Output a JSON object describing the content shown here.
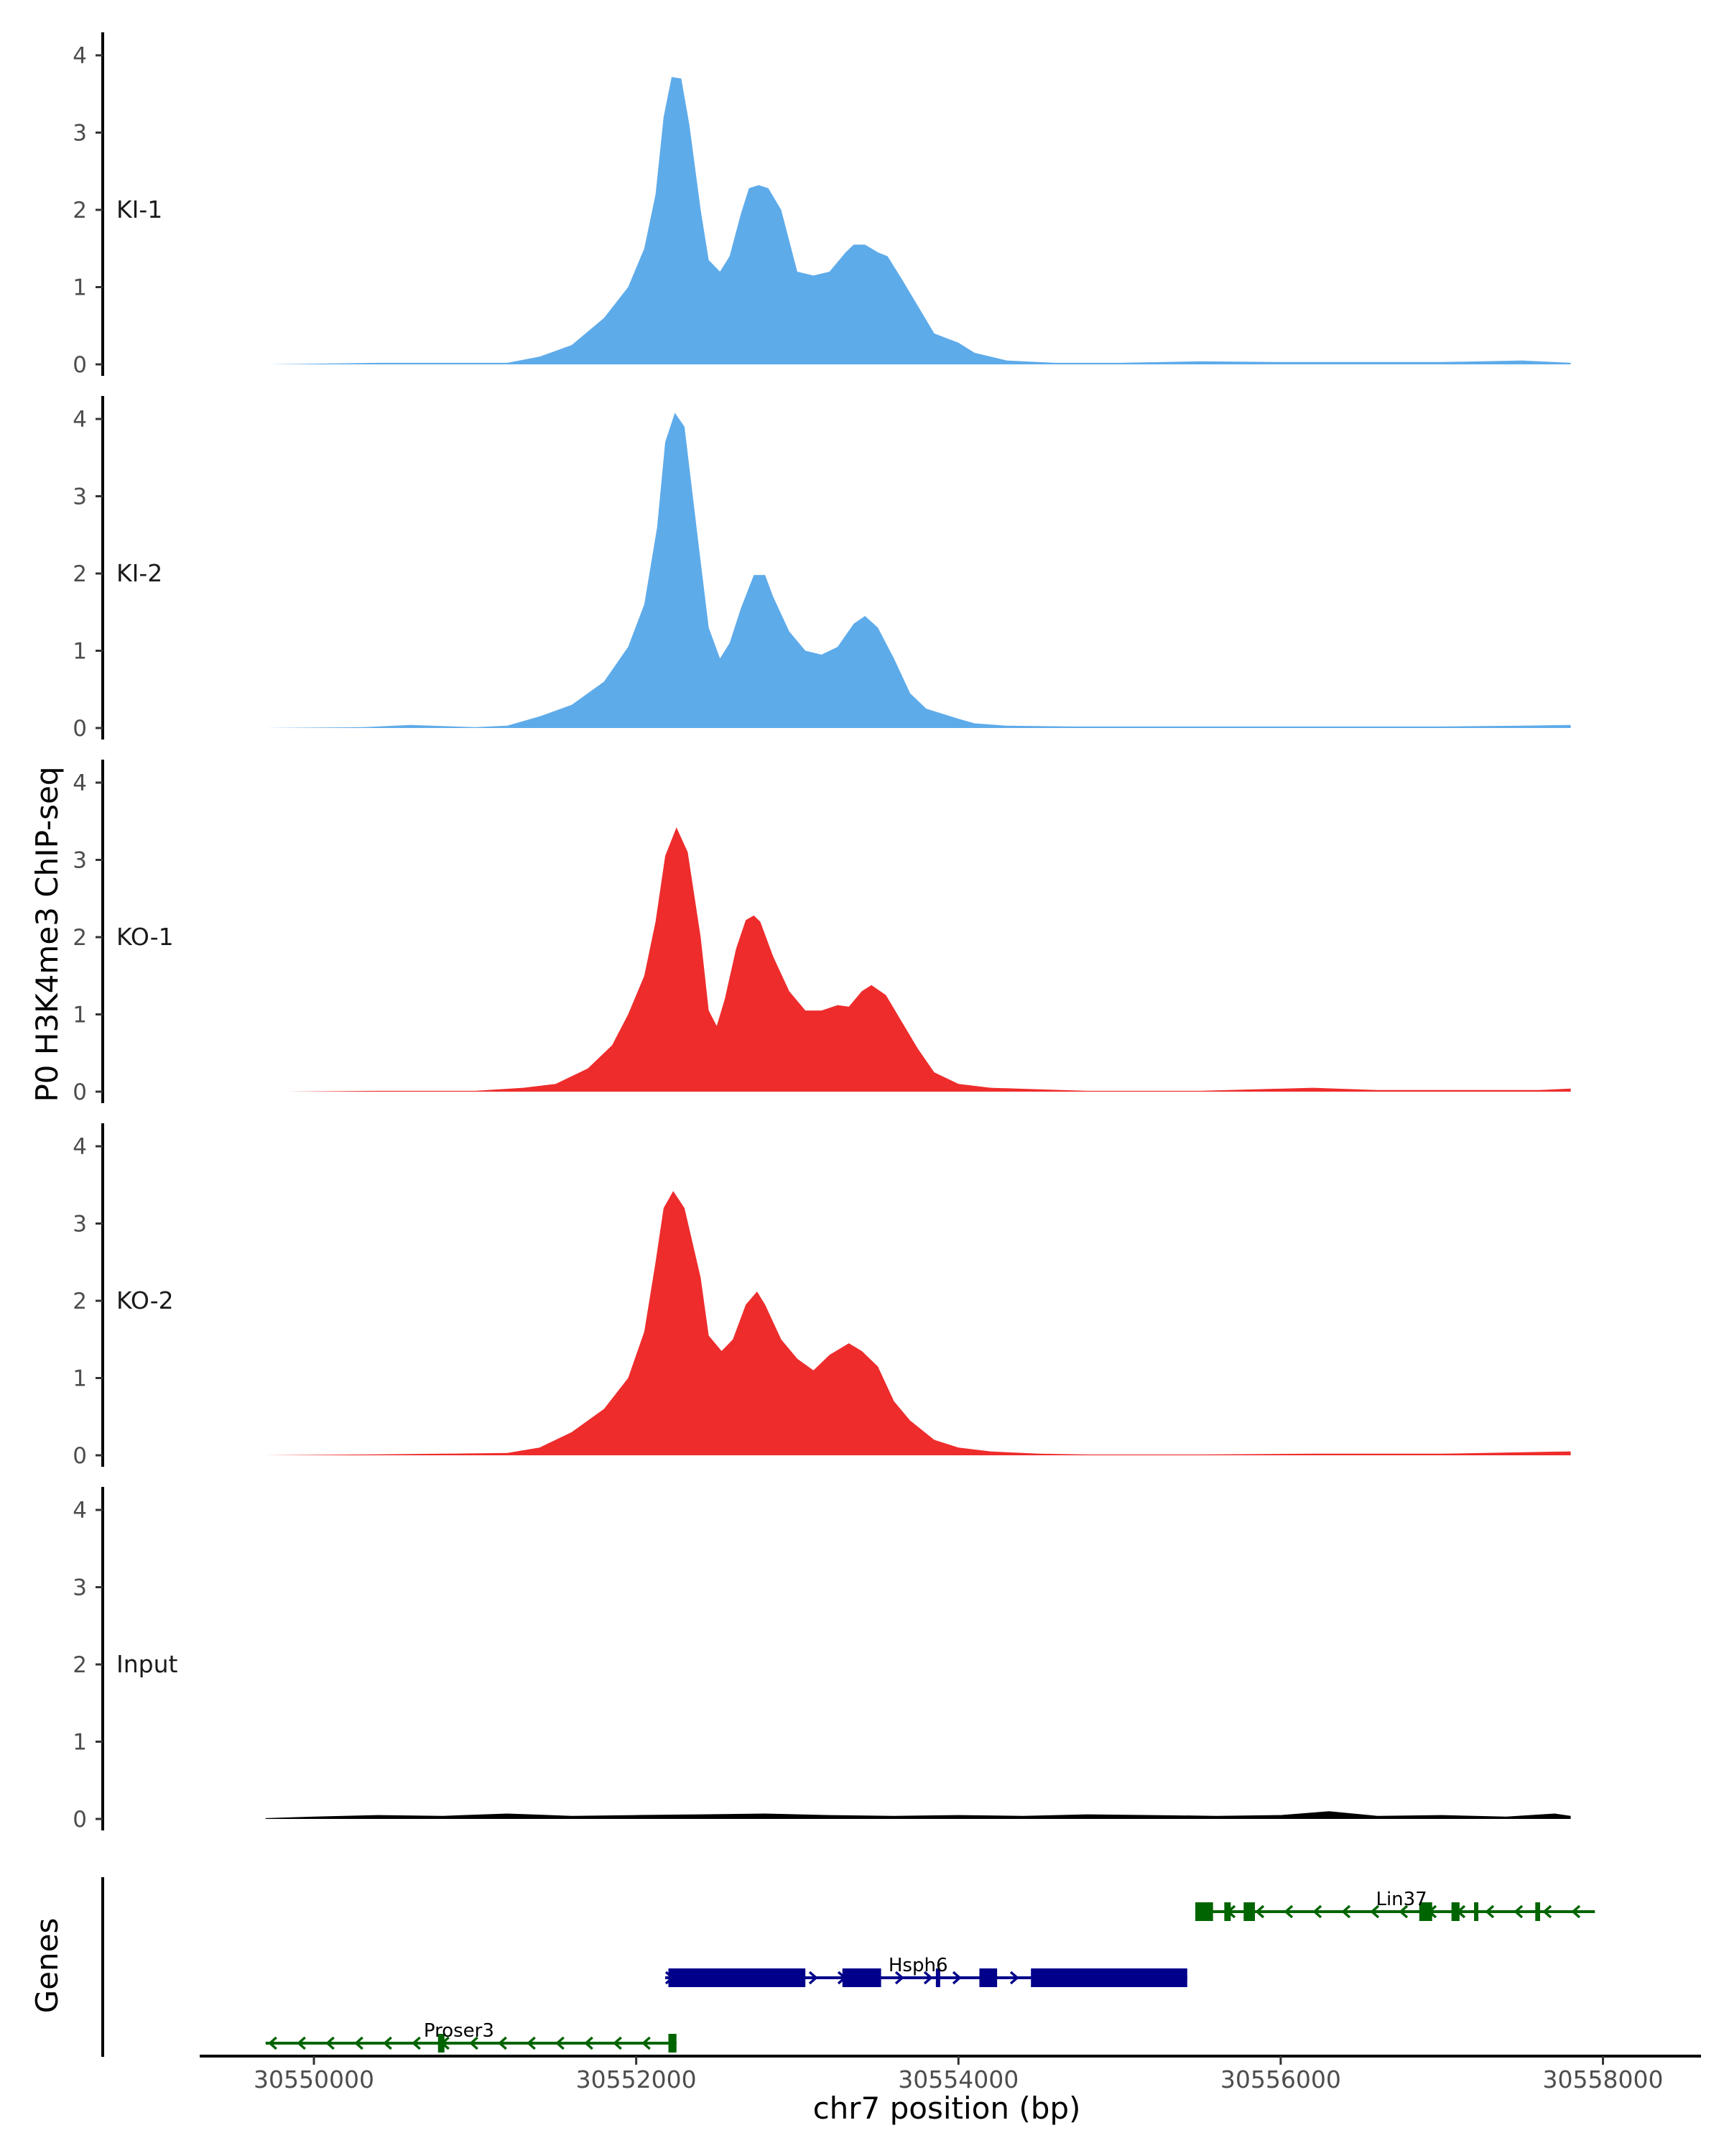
{
  "figure": {
    "ylabel": "P0 H3K4me3 ChIP-seq",
    "xlabel": "chr7 position (bp)",
    "genes_label": "Genes"
  },
  "chart_data": {
    "type": "area",
    "xlim": [
      30549300,
      30558350
    ],
    "ylim": [
      0,
      4.3
    ],
    "y_ticks": [
      "0",
      "1",
      "2",
      "3",
      "4"
    ],
    "x_ticks": [
      {
        "value": 30550000,
        "label": "30550000"
      },
      {
        "value": 30552000,
        "label": "30552000"
      },
      {
        "value": 30554000,
        "label": "30554000"
      },
      {
        "value": 30556000,
        "label": "30556000"
      },
      {
        "value": 30558000,
        "label": "30558000"
      }
    ],
    "tracks": [
      {
        "name": "KI-1",
        "color": "#5eabea",
        "x": [
          30549730,
          30550400,
          30550800,
          30551200,
          30551400,
          30551600,
          30551800,
          30551950,
          30552050,
          30552120,
          30552170,
          30552220,
          30552280,
          30552330,
          30552400,
          30552450,
          30552520,
          30552580,
          30552650,
          30552700,
          30552760,
          30552820,
          30552900,
          30552950,
          30553000,
          30553100,
          30553200,
          30553300,
          30553350,
          30553420,
          30553500,
          30553560,
          30553650,
          30553750,
          30553850,
          30554000,
          30554100,
          30554300,
          30554600,
          30555000,
          30555500,
          30556000,
          30556500,
          30557000,
          30557500,
          30557800
        ],
        "y": [
          0,
          0.02,
          0.02,
          0.02,
          0.1,
          0.25,
          0.6,
          1.0,
          1.5,
          2.2,
          3.2,
          3.72,
          3.7,
          3.1,
          2.0,
          1.35,
          1.2,
          1.4,
          1.95,
          2.28,
          2.32,
          2.28,
          2.0,
          1.6,
          1.2,
          1.15,
          1.2,
          1.45,
          1.55,
          1.55,
          1.45,
          1.4,
          1.1,
          0.75,
          0.4,
          0.28,
          0.15,
          0.05,
          0.02,
          0.02,
          0.04,
          0.03,
          0.03,
          0.03,
          0.05,
          0.02
        ]
      },
      {
        "name": "KI-2",
        "color": "#5eabea",
        "x": [
          30549700,
          30550300,
          30550600,
          30551000,
          30551200,
          30551400,
          30551600,
          30551800,
          30551950,
          30552050,
          30552130,
          30552180,
          30552240,
          30552300,
          30552380,
          30552450,
          30552520,
          30552580,
          30552650,
          30552730,
          30552800,
          30552850,
          30552950,
          30553050,
          30553150,
          30553250,
          30553350,
          30553420,
          30553500,
          30553600,
          30553700,
          30553800,
          30554000,
          30554100,
          30554300,
          30554700,
          30555200,
          30555800,
          30556500,
          30557000,
          30557500,
          30557800
        ],
        "y": [
          0,
          0.01,
          0.04,
          0.01,
          0.03,
          0.15,
          0.3,
          0.6,
          1.05,
          1.6,
          2.6,
          3.7,
          4.08,
          3.9,
          2.5,
          1.3,
          0.9,
          1.1,
          1.55,
          1.98,
          1.98,
          1.7,
          1.25,
          1.0,
          0.95,
          1.05,
          1.35,
          1.45,
          1.3,
          0.9,
          0.45,
          0.25,
          0.12,
          0.06,
          0.03,
          0.02,
          0.02,
          0.02,
          0.02,
          0.02,
          0.03,
          0.04
        ]
      },
      {
        "name": "KO-1",
        "color": "#ee2c2c",
        "x": [
          30549830,
          30550400,
          30551000,
          30551300,
          30551500,
          30551700,
          30551850,
          30551950,
          30552050,
          30552120,
          30552180,
          30552250,
          30552320,
          30552400,
          30552450,
          30552500,
          30552550,
          30552620,
          30552680,
          30552730,
          30552770,
          30552850,
          30552950,
          30553050,
          30553150,
          30553250,
          30553320,
          30553400,
          30553460,
          30553550,
          30553650,
          30553750,
          30553850,
          30554000,
          30554200,
          30554500,
          30554800,
          30555500,
          30556200,
          30556600,
          30557100,
          30557600,
          30557800
        ],
        "y": [
          0,
          0.01,
          0.01,
          0.05,
          0.1,
          0.3,
          0.6,
          1.0,
          1.5,
          2.2,
          3.05,
          3.42,
          3.1,
          2.0,
          1.05,
          0.85,
          1.2,
          1.85,
          2.22,
          2.28,
          2.2,
          1.75,
          1.3,
          1.05,
          1.05,
          1.12,
          1.1,
          1.3,
          1.38,
          1.25,
          0.9,
          0.55,
          0.25,
          0.1,
          0.05,
          0.03,
          0.01,
          0.01,
          0.05,
          0.02,
          0.02,
          0.02,
          0.04
        ]
      },
      {
        "name": "KO-2",
        "color": "#ee2c2c",
        "x": [
          30549700,
          30550300,
          30550800,
          30551200,
          30551400,
          30551600,
          30551800,
          30551950,
          30552050,
          30552120,
          30552170,
          30552230,
          30552300,
          30552400,
          30552450,
          30552530,
          30552600,
          30552680,
          30552750,
          30552800,
          30552900,
          30553000,
          30553100,
          30553200,
          30553320,
          30553400,
          30553500,
          30553600,
          30553700,
          30553850,
          30554000,
          30554200,
          30554500,
          30554800,
          30555500,
          30556200,
          30557000,
          30557500,
          30557800
        ],
        "y": [
          0,
          0.01,
          0.02,
          0.03,
          0.1,
          0.3,
          0.6,
          1.0,
          1.6,
          2.5,
          3.2,
          3.42,
          3.2,
          2.3,
          1.55,
          1.35,
          1.5,
          1.95,
          2.12,
          1.95,
          1.5,
          1.25,
          1.1,
          1.3,
          1.45,
          1.35,
          1.15,
          0.7,
          0.45,
          0.2,
          0.1,
          0.05,
          0.02,
          0.01,
          0.01,
          0.02,
          0.02,
          0.04,
          0.05
        ]
      },
      {
        "name": "Input",
        "color": "#000000",
        "x": [
          30549700,
          30550000,
          30550400,
          30550800,
          30551200,
          30551600,
          30552000,
          30552400,
          30552800,
          30553200,
          30553600,
          30554000,
          30554400,
          30554800,
          30555200,
          30555600,
          30556000,
          30556300,
          30556600,
          30557000,
          30557400,
          30557700,
          30557800
        ],
        "y": [
          0.01,
          0.03,
          0.05,
          0.04,
          0.07,
          0.04,
          0.05,
          0.06,
          0.07,
          0.05,
          0.04,
          0.05,
          0.04,
          0.06,
          0.05,
          0.04,
          0.05,
          0.1,
          0.04,
          0.05,
          0.03,
          0.07,
          0.04
        ]
      }
    ],
    "genes": [
      {
        "name": "Lin37",
        "strand": "-",
        "color": "#006400",
        "row": 0,
        "start": 30555470,
        "end": 30557950,
        "label_x": 30556750,
        "exons": [
          [
            30555470,
            30555580
          ],
          [
            30555650,
            30555690
          ],
          [
            30555770,
            30555840
          ],
          [
            30556860,
            30556940
          ],
          [
            30557060,
            30557110
          ],
          [
            30557200,
            30557210
          ],
          [
            30557580,
            30557610
          ]
        ]
      },
      {
        "name": "Hsph6",
        "strand": "+",
        "color": "#00008b",
        "row": 1,
        "start": 30552180,
        "end": 30555420,
        "label_x": 30553750,
        "exons": [
          [
            30552200,
            30553050
          ],
          [
            30553280,
            30553520
          ],
          [
            30553860,
            30553880
          ],
          [
            30554130,
            30554240
          ],
          [
            30554450,
            30555420
          ]
        ]
      },
      {
        "name": "Proser3",
        "strand": "-",
        "color": "#006400",
        "row": 2,
        "start": 30549700,
        "end": 30552250,
        "label_x": 30550900,
        "exons": [
          [
            30550770,
            30550810
          ],
          [
            30552200,
            30552250
          ]
        ]
      }
    ]
  }
}
